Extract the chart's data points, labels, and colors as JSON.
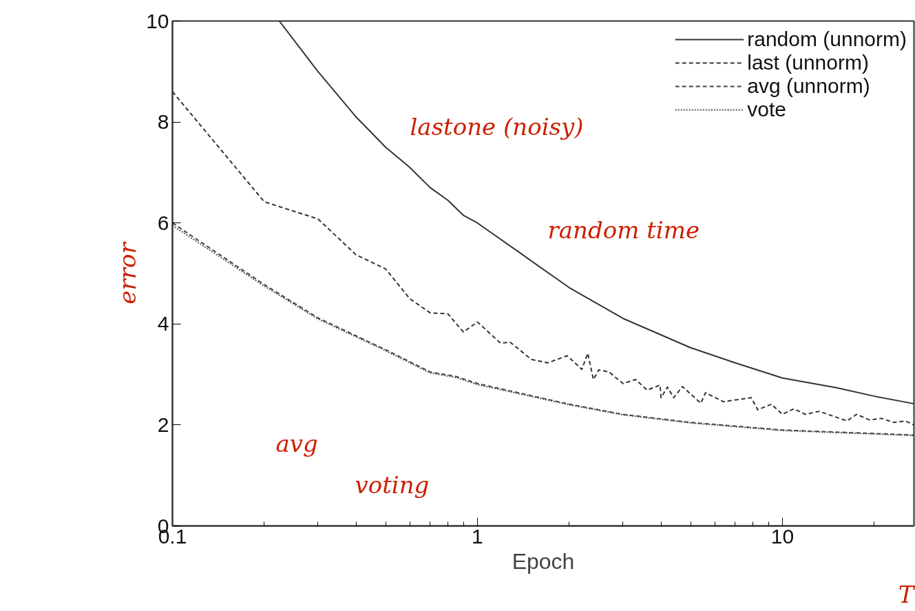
{
  "chart_data": {
    "type": "line",
    "xlabel": "Epoch",
    "log": "x",
    "xlim": [
      0.1,
      27
    ],
    "ylim": [
      0,
      10
    ],
    "xticks": [
      0.1,
      1,
      10
    ],
    "yticks": [
      0,
      2,
      4,
      6,
      8,
      10
    ],
    "grid": false,
    "legend": "top right",
    "marker": "none",
    "series": [
      {
        "name": "random (unnorm)",
        "color": "#333333",
        "line_style": "solid",
        "x": [
          0.224,
          0.3,
          0.4,
          0.5,
          0.6,
          0.7,
          0.8,
          0.9,
          1,
          2,
          3,
          5,
          7,
          10,
          15,
          20,
          27
        ],
        "values": [
          10.0,
          9.0,
          8.1,
          7.5,
          7.1,
          6.7,
          6.45,
          6.15,
          6.0,
          4.72,
          4.11,
          3.53,
          3.23,
          2.93,
          2.74,
          2.57,
          2.42
        ]
      },
      {
        "name": "last (unnorm)",
        "color": "#333333",
        "line_style": "dashed",
        "x": [
          0.1,
          0.2,
          0.3,
          0.4,
          0.5,
          0.6,
          0.7,
          0.8,
          0.9,
          1.0,
          1.19,
          1.28,
          1.5,
          1.7,
          1.97,
          2.2,
          2.3,
          2.4,
          2.5,
          2.7,
          3.0,
          3.3,
          3.6,
          3.97,
          4.0,
          4.2,
          4.4,
          4.7,
          5.4,
          5.6,
          6.4,
          7.9,
          8.3,
          9.2,
          10,
          10.9,
          11.9,
          13.2,
          14.9,
          16.3,
          17.5,
          19.3,
          21.1,
          23.2,
          25.3,
          27
        ],
        "values": [
          8.6,
          6.42,
          6.08,
          5.37,
          5.09,
          4.5,
          4.22,
          4.2,
          3.84,
          4.04,
          3.62,
          3.64,
          3.3,
          3.23,
          3.37,
          3.1,
          3.42,
          2.9,
          3.09,
          3.05,
          2.82,
          2.9,
          2.69,
          2.79,
          2.54,
          2.75,
          2.54,
          2.76,
          2.43,
          2.64,
          2.46,
          2.54,
          2.3,
          2.41,
          2.21,
          2.32,
          2.21,
          2.27,
          2.16,
          2.08,
          2.21,
          2.1,
          2.13,
          2.05,
          2.08,
          2.0
        ]
      },
      {
        "name": "avg (unnorm)",
        "color": "#444444",
        "line_style": "dashed",
        "x": [
          0.1,
          0.2,
          0.3,
          0.5,
          0.7,
          0.85,
          1,
          2,
          3,
          5,
          10,
          27
        ],
        "values": [
          6.0,
          4.78,
          4.12,
          3.49,
          3.05,
          2.96,
          2.82,
          2.41,
          2.21,
          2.05,
          1.9,
          1.8
        ]
      },
      {
        "name": "vote",
        "color": "#555555",
        "line_style": "dotted",
        "x": [
          0.1,
          0.2,
          0.3,
          0.5,
          0.7,
          0.85,
          1,
          2,
          3,
          5,
          10,
          27
        ],
        "values": [
          5.95,
          4.75,
          4.1,
          3.47,
          3.03,
          2.94,
          2.8,
          2.4,
          2.2,
          2.04,
          1.89,
          1.79
        ]
      }
    ],
    "annotations": [
      "lastone (noisy)",
      "random time",
      "avg",
      "voting",
      "error",
      "T"
    ]
  }
}
